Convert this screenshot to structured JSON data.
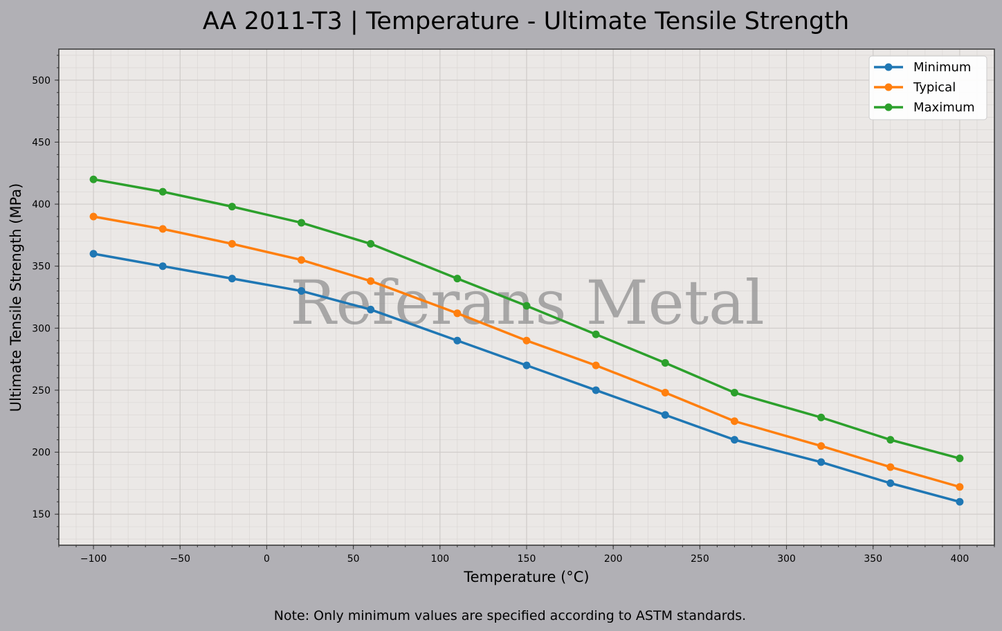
{
  "chart_data": {
    "type": "line",
    "title": "AA 2011-T3 | Temperature - Ultimate Tensile Strength",
    "xlabel": "Temperature (°C)",
    "ylabel": "Ultimate Tensile Strength (MPa)",
    "xlim": [
      -120,
      420
    ],
    "ylim": [
      125,
      525
    ],
    "xticks": [
      -100,
      -50,
      0,
      50,
      100,
      150,
      200,
      250,
      300,
      350,
      400
    ],
    "xtick_labels": [
      "−100",
      "−50",
      "0",
      "50",
      "100",
      "150",
      "200",
      "250",
      "300",
      "350",
      "400"
    ],
    "yticks": [
      150,
      200,
      250,
      300,
      350,
      400,
      450,
      500
    ],
    "ytick_labels": [
      "150",
      "200",
      "250",
      "300",
      "350",
      "400",
      "450",
      "500"
    ],
    "grid": true,
    "legend_position": "top-right",
    "x": [
      -100,
      -60,
      -20,
      20,
      60,
      110,
      150,
      190,
      230,
      270,
      320,
      360,
      400
    ],
    "series": [
      {
        "name": "Minimum",
        "color": "#1f77b4",
        "values": [
          360,
          350,
          340,
          330,
          315,
          290,
          270,
          250,
          230,
          210,
          192,
          175,
          160
        ]
      },
      {
        "name": "Typical",
        "color": "#ff7f0e",
        "values": [
          390,
          380,
          368,
          355,
          338,
          312,
          290,
          270,
          248,
          225,
          205,
          188,
          172
        ]
      },
      {
        "name": "Maximum",
        "color": "#2ca02c",
        "values": [
          420,
          410,
          398,
          385,
          368,
          340,
          318,
          295,
          272,
          248,
          228,
          210,
          195
        ]
      }
    ],
    "watermark": "Referans Metal",
    "note": "Note: Only minimum values are specified according to ASTM standards."
  }
}
